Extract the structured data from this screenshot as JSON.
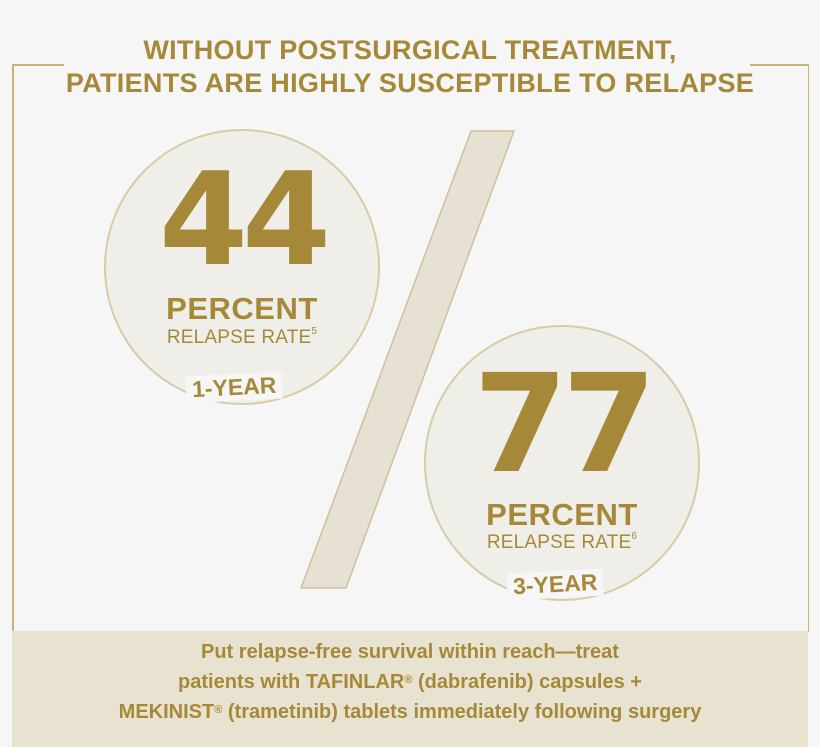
{
  "headline": {
    "line1": "WITHOUT POSTSURGICAL TREATMENT,",
    "line2": "PATIENTS ARE HIGHLY SUSCEPTIBLE TO RELAPSE"
  },
  "stats": [
    {
      "number": "44",
      "unit": "PERCENT",
      "label": "RELAPSE RATE",
      "ref": "5",
      "period": "1-YEAR"
    },
    {
      "number": "77",
      "unit": "PERCENT",
      "label": "RELAPSE RATE",
      "ref": "6",
      "period": "3-YEAR"
    }
  ],
  "footer": {
    "line1": "Put relapse-free survival within reach—treat",
    "line2_a": "patients with TAFINLAR",
    "line2_reg": "®",
    "line2_b": " (dabrafenib) capsules +",
    "line3_a": "MEKINIST",
    "line3_reg": "®",
    "line3_b": " (trametinib) tablets immediately following surgery"
  },
  "colors": {
    "gold": "#a68938",
    "circle_fill": "#efeee8",
    "slash": "#e6e1d3",
    "footer_bg": "#e8e3d1"
  }
}
